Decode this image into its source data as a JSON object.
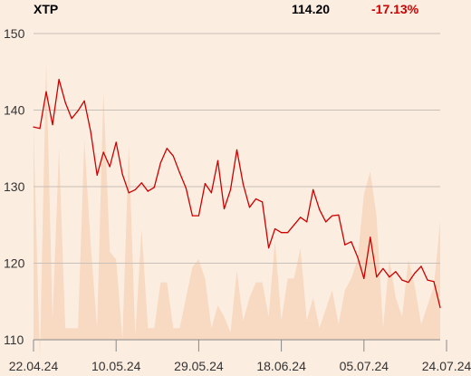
{
  "header": {
    "symbol": "XTP",
    "price": "114.20",
    "change": "-17.13%"
  },
  "colors": {
    "background": "#fcede1",
    "line": "#cc0000",
    "volume": "#f8d9c2",
    "grid": "#c8c0b8"
  },
  "chart_data": {
    "type": "line",
    "title": "",
    "xlabel": "",
    "ylabel": "",
    "ylim": [
      110,
      150
    ],
    "yticks": [
      110,
      120,
      130,
      140,
      150
    ],
    "xtick_labels": [
      "22.04.24",
      "10.05.24",
      "29.05.24",
      "18.06.24",
      "05.07.24",
      "24.07.24"
    ],
    "xtick_index": [
      0,
      13,
      26,
      39,
      52,
      65
    ],
    "grid": true,
    "series": [
      {
        "values": [
          137.8,
          137.6,
          142.4,
          138.1,
          144.0,
          141.0,
          138.9,
          139.9,
          141.2,
          137.2,
          131.5,
          134.5,
          132.6,
          135.8,
          131.6,
          129.2,
          129.6,
          130.5,
          129.4,
          129.9,
          133.1,
          135.0,
          134.0,
          131.8,
          129.8,
          126.2,
          126.2,
          130.4,
          129.2,
          133.4,
          127.1,
          129.6,
          134.8,
          130.3,
          127.3,
          128.4,
          128.0,
          122.0,
          124.5,
          124.0,
          124.0,
          125.0,
          126.0,
          125.4,
          129.6,
          127.0,
          125.4,
          126.2,
          126.3,
          122.4,
          122.8,
          120.8,
          118.0,
          123.4,
          118.2,
          119.3,
          118.2,
          118.9,
          117.8,
          117.5,
          118.7,
          119.6,
          117.8,
          117.6,
          114.2
        ]
      }
    ],
    "volume_profile": [
      137.5,
      107.5,
      146.5,
      112.5,
      135.0,
      111.5,
      111.5,
      111.5,
      136.0,
      122.5,
      111.5,
      142.5,
      121.5,
      120.5,
      110.0,
      135.5,
      110.5,
      124.5,
      111.5,
      111.5,
      117.5,
      117.5,
      111.5,
      111.5,
      115.5,
      119.5,
      120.5,
      118.0,
      111.5,
      114.5,
      113.0,
      111.0,
      119.0,
      112.5,
      115.5,
      117.5,
      117.5,
      113.0,
      123.0,
      112.5,
      118.0,
      118.0,
      122.0,
      112.5,
      115.5,
      111.5,
      114.0,
      116.5,
      112.0,
      116.5,
      118.0,
      120.5,
      129.0,
      132.0,
      126.0,
      111.5,
      120.5,
      115.5,
      113.0,
      120.5,
      117.0,
      112.0,
      114.5,
      117.0,
      125.5
    ]
  }
}
